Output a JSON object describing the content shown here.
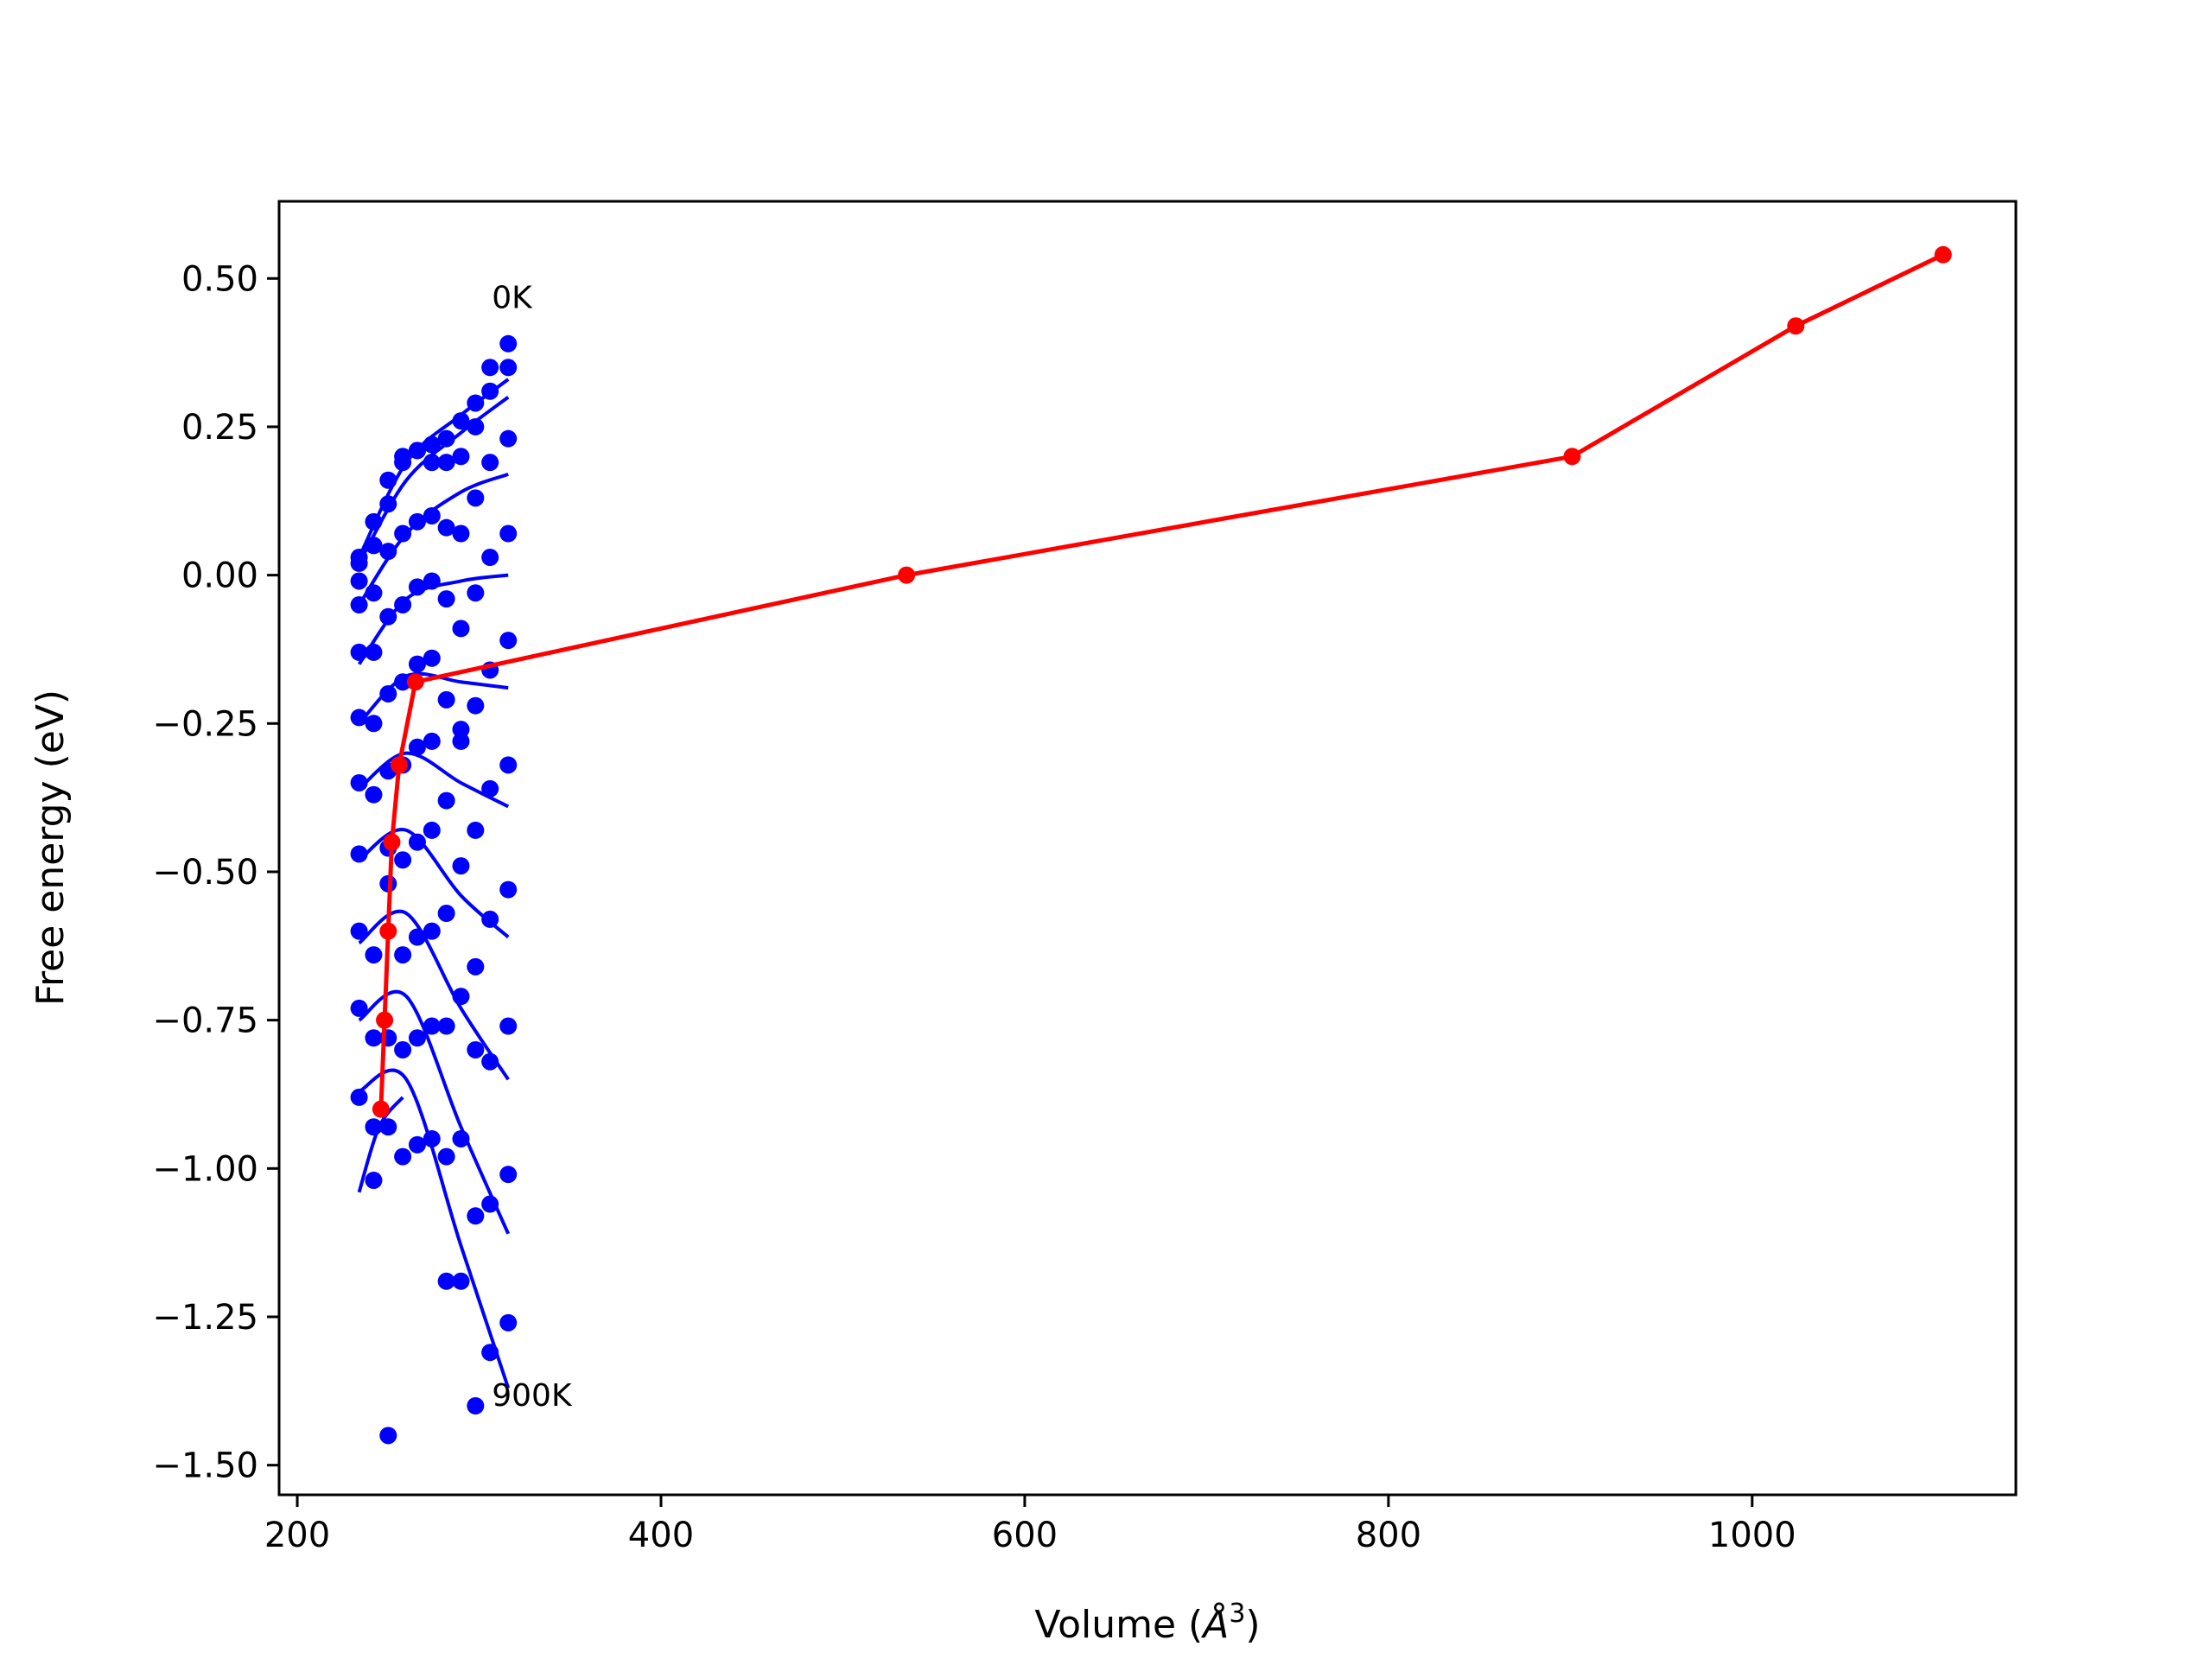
{
  "chart_data": {
    "type": "scatter",
    "title": "",
    "xlabel_pre": "Volume (",
    "xlabel_sym": "Å",
    "xlabel_sup": "3",
    "xlabel_post": ")",
    "ylabel": "Free energy (eV)",
    "xlim": [
      190,
      1145
    ],
    "ylim": [
      -1.55,
      0.63
    ],
    "xticks": [
      200,
      400,
      600,
      800,
      1000
    ],
    "xtick_labels": [
      "200",
      "400",
      "600",
      "800",
      "1000"
    ],
    "yticks": [
      0.5,
      0.25,
      0.0,
      -0.25,
      -0.5,
      -0.75,
      -1.0,
      -1.25,
      -1.5
    ],
    "ytick_labels": [
      "0.50",
      "0.25",
      "0.00",
      "−0.25",
      "−0.50",
      "−0.75",
      "−1.00",
      "−1.25",
      "−1.50"
    ],
    "grid": false,
    "annotations": [
      {
        "text": "0K",
        "x": 307,
        "y": 0.45
      },
      {
        "text": "900K",
        "x": 307,
        "y": -1.4
      }
    ],
    "volumes": [
      234,
      242,
      250,
      258,
      266,
      274,
      282,
      290,
      298,
      306,
      316
    ],
    "scatter_series": [
      {
        "values": [
          0.03,
          0.09,
          0.16,
          0.19,
          0.21,
          0.22,
          0.23,
          0.26,
          0.29,
          0.35,
          0.39
        ]
      },
      {
        "values": [
          0.02,
          0.05,
          0.12,
          0.2,
          0.21,
          0.19,
          0.19,
          0.2,
          0.25,
          0.31,
          0.35
        ]
      },
      {
        "values": [
          -0.01,
          0.05,
          0.04,
          0.07,
          0.09,
          0.1,
          0.08,
          0.07,
          0.13,
          0.19,
          0.23
        ]
      },
      {
        "values": [
          -0.05,
          -0.03,
          -0.07,
          -0.05,
          -0.02,
          -0.01,
          -0.04,
          -0.09,
          -0.03,
          0.03,
          0.07
        ]
      },
      {
        "values": [
          -0.13,
          -0.13,
          -0.2,
          -0.18,
          -0.15,
          -0.14,
          -0.21,
          -0.26,
          -0.22,
          -0.16,
          -0.11
        ]
      },
      {
        "values": [
          -0.24,
          -0.25,
          -0.33,
          -0.32,
          -0.29,
          -0.28,
          -0.38,
          -0.28,
          -0.43,
          -0.36,
          -0.32
        ]
      },
      {
        "values": [
          -0.35,
          -0.37,
          -0.46,
          -0.48,
          -0.45,
          -0.43,
          -0.57,
          -0.49,
          -0.66,
          -0.58,
          -0.53
        ]
      },
      {
        "values": [
          -0.47,
          -0.64,
          -0.52,
          -0.64,
          -0.61,
          -0.6,
          -0.76,
          -0.71,
          -0.8,
          -0.82,
          -0.76
        ]
      },
      {
        "values": [
          -0.6,
          -0.78,
          -0.78,
          -0.8,
          -0.78,
          -0.76,
          -0.98,
          -0.95,
          -1.08,
          -1.06,
          -1.01
        ]
      },
      {
        "values": [
          -0.73,
          -0.93,
          -0.93,
          -0.98,
          -0.96,
          -0.95,
          -1.19,
          -1.19,
          -1.4,
          -1.31,
          -1.26
        ]
      },
      {
        "values": [
          -0.88,
          -1.02,
          -1.45
        ]
      }
    ],
    "fit_curves": [
      {
        "x": [
          234,
          260,
          290,
          316
        ],
        "y": [
          0.03,
          0.19,
          0.27,
          0.33
        ]
      },
      {
        "x": [
          234,
          260,
          290,
          316
        ],
        "y": [
          0.02,
          0.16,
          0.24,
          0.3
        ]
      },
      {
        "x": [
          234,
          260,
          290,
          316
        ],
        "y": [
          -0.05,
          0.07,
          0.14,
          0.17
        ]
      },
      {
        "x": [
          234,
          260,
          290,
          316
        ],
        "y": [
          -0.15,
          -0.04,
          -0.01,
          0.0
        ]
      },
      {
        "x": [
          234,
          260,
          290,
          316
        ],
        "y": [
          -0.25,
          -0.17,
          -0.18,
          -0.19
        ]
      },
      {
        "x": [
          234,
          260,
          290,
          316
        ],
        "y": [
          -0.36,
          -0.3,
          -0.35,
          -0.39
        ]
      },
      {
        "x": [
          234,
          260,
          290,
          316
        ],
        "y": [
          -0.48,
          -0.43,
          -0.54,
          -0.61
        ]
      },
      {
        "x": [
          234,
          260,
          290,
          316
        ],
        "y": [
          -0.62,
          -0.57,
          -0.73,
          -0.85
        ]
      },
      {
        "x": [
          234,
          260,
          290,
          316
        ],
        "y": [
          -0.75,
          -0.71,
          -0.93,
          -1.11
        ]
      },
      {
        "x": [
          234,
          260,
          290,
          316
        ],
        "y": [
          -0.87,
          -0.85,
          -1.13,
          -1.37
        ]
      },
      {
        "x": [
          234,
          245,
          258
        ],
        "y": [
          -1.04,
          -0.93,
          -0.88
        ]
      }
    ],
    "min_series": {
      "x": [
        246,
        248,
        250,
        252,
        256,
        265,
        535,
        901,
        1024,
        1105
      ],
      "y": [
        -0.9,
        -0.75,
        -0.6,
        -0.45,
        -0.32,
        -0.18,
        0.0,
        0.2,
        0.42,
        0.54
      ]
    },
    "colors": {
      "points": "#0000ff",
      "fits": "#0000ff",
      "minimum": "#ff0000"
    }
  }
}
